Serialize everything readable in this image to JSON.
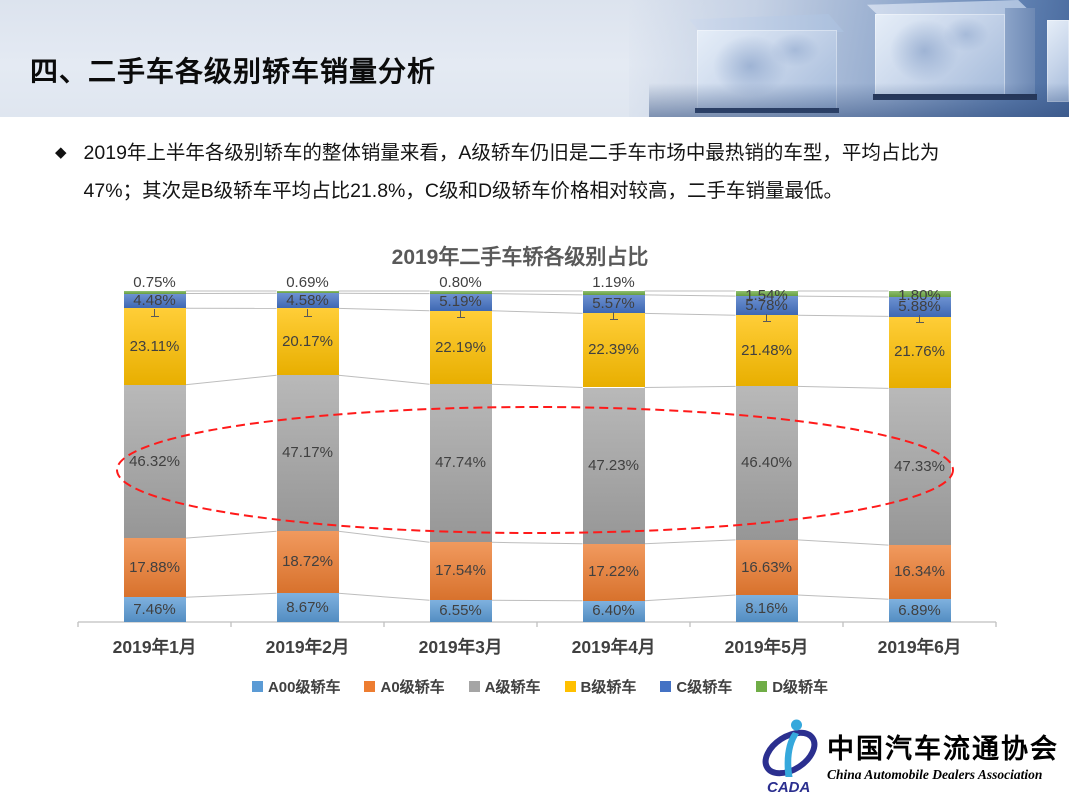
{
  "slide": {
    "title": "四、二手车各级别轿车销量分析",
    "bullet_symbol": "◆",
    "bullet_lines": [
      "2019年上半年各级别轿车的整体销量来看，A级轿车仍旧是二手车市场中最热销的车型，平均占比为",
      "47%；其次是B级轿车平均占比21.8%，C级和D级轿车价格相对较高，二手车销量最低。"
    ]
  },
  "chart_data": {
    "type": "bar",
    "stacked": true,
    "title": "2019年二手车轿各级别占比",
    "categories": [
      "2019年1月",
      "2019年2月",
      "2019年3月",
      "2019年4月",
      "2019年5月",
      "2019年6月"
    ],
    "series": [
      {
        "name": "A00级轿车",
        "color": "#5B9BD5",
        "values": [
          7.46,
          8.67,
          6.55,
          6.4,
          8.16,
          6.89
        ]
      },
      {
        "name": "A0级轿车",
        "color": "#ED7D31",
        "values": [
          17.88,
          18.72,
          17.54,
          17.22,
          16.63,
          16.34
        ]
      },
      {
        "name": "A级轿车",
        "color": "#A5A5A5",
        "values": [
          46.32,
          47.17,
          47.74,
          47.23,
          46.4,
          47.33
        ]
      },
      {
        "name": "B级轿车",
        "color": "#FFC000",
        "values": [
          23.11,
          20.17,
          22.19,
          22.39,
          21.48,
          21.76
        ]
      },
      {
        "name": "C级轿车",
        "color": "#4472C4",
        "values": [
          4.48,
          4.58,
          5.19,
          5.57,
          5.78,
          5.88
        ]
      },
      {
        "name": "D级轿车",
        "color": "#70AD47",
        "values": [
          0.75,
          0.69,
          0.8,
          1.19,
          1.54,
          1.8
        ]
      }
    ],
    "value_suffix": "%",
    "ylim": [
      0,
      100
    ],
    "grid": false,
    "legend_position": "bottom",
    "annotation": {
      "shape": "dashed-ellipse",
      "color": "#FF1A1A",
      "around_series": "A级轿车"
    }
  },
  "footer": {
    "org_cn": "中国汽车流通协会",
    "org_en": "China  Automobile  Dealers  Association",
    "logo_acronym": "CADA"
  }
}
